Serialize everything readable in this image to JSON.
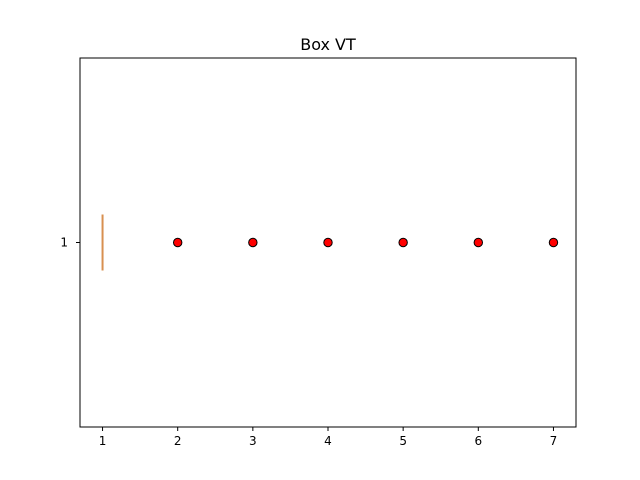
{
  "chart_data": {
    "type": "box",
    "orientation": "horizontal",
    "title": "Box VT",
    "xlabel": "",
    "ylabel": "",
    "xlim": [
      0.7,
      7.3
    ],
    "ylim": [
      0.5,
      1.5
    ],
    "xticks": [
      "1",
      "2",
      "3",
      "4",
      "5",
      "6",
      "7"
    ],
    "yticks": [
      "1"
    ],
    "grid": false,
    "legend": "none",
    "box": {
      "category": "1",
      "min": 1,
      "q1": 1,
      "median": 1,
      "q3": 1,
      "max": 1,
      "median_color": "#d89050",
      "outliers": [
        2,
        3,
        4,
        5,
        6,
        7
      ],
      "outlier_fill": "#ff0000",
      "outlier_edge": "#000000"
    }
  }
}
